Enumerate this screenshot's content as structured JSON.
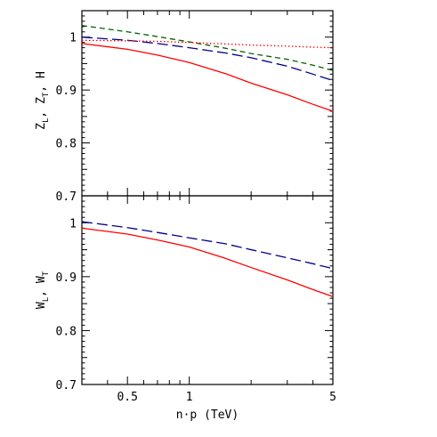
{
  "chart_data": [
    {
      "type": "line",
      "panel": "top",
      "ylabel": "Z",
      "ylabel_parts": [
        "Z",
        "L",
        ", Z",
        "T",
        ", H"
      ],
      "xscale": "log",
      "xlim": [
        0.3,
        5
      ],
      "ylim": [
        0.7,
        1.05
      ],
      "yticks": [
        0.7,
        0.8,
        0.9,
        1
      ],
      "ytick_labels": [
        "0.7",
        "0.8",
        "0.9",
        "1"
      ],
      "series": [
        {
          "color": "#ff0000",
          "style": "solid",
          "x": [
            0.3,
            0.5,
            0.7,
            1,
            1.5,
            2,
            3,
            4,
            5
          ],
          "y": [
            0.988,
            0.977,
            0.966,
            0.952,
            0.931,
            0.913,
            0.891,
            0.873,
            0.86
          ]
        },
        {
          "color": "#00008b",
          "style": "long-dash",
          "x": [
            0.3,
            0.5,
            0.7,
            1,
            1.5,
            2,
            3,
            4,
            5
          ],
          "y": [
            1.0,
            0.994,
            0.988,
            0.98,
            0.97,
            0.961,
            0.945,
            0.93,
            0.918
          ]
        },
        {
          "color": "#006400",
          "style": "short-dash",
          "x": [
            0.3,
            0.5,
            0.7,
            1,
            1.5,
            2,
            3,
            4,
            5
          ],
          "y": [
            1.022,
            1.01,
            1.001,
            0.991,
            0.979,
            0.969,
            0.958,
            0.947,
            0.937
          ]
        },
        {
          "color": "#ff0000",
          "style": "dotted",
          "x": [
            0.3,
            0.5,
            0.7,
            1,
            1.5,
            2,
            3,
            4,
            5
          ],
          "y": [
            0.994,
            0.993,
            0.992,
            0.99,
            0.987,
            0.985,
            0.983,
            0.981,
            0.98
          ]
        }
      ]
    },
    {
      "type": "line",
      "panel": "bottom",
      "ylabel_parts": [
        "W",
        "L",
        ", W",
        "T"
      ],
      "xlabel": "n·p (TeV)",
      "xscale": "log",
      "xlim": [
        0.3,
        5
      ],
      "ylim": [
        0.7,
        1.05
      ],
      "yticks": [
        0.7,
        0.8,
        0.9,
        1
      ],
      "ytick_labels": [
        "0.7",
        "0.8",
        "0.9",
        "1"
      ],
      "xticks": [
        0.5,
        1,
        5
      ],
      "xtick_labels": [
        "0.5",
        "1",
        "5"
      ],
      "series": [
        {
          "color": "#ff0000",
          "style": "solid",
          "x": [
            0.3,
            0.5,
            0.7,
            1,
            1.5,
            2,
            3,
            4,
            5
          ],
          "y": [
            0.99,
            0.979,
            0.968,
            0.955,
            0.934,
            0.917,
            0.894,
            0.876,
            0.863
          ]
        },
        {
          "color": "#00008b",
          "style": "long-dash",
          "x": [
            0.3,
            0.5,
            0.7,
            1,
            1.5,
            2,
            3,
            4,
            5
          ],
          "y": [
            1.002,
            0.991,
            0.982,
            0.972,
            0.961,
            0.95,
            0.935,
            0.924,
            0.915
          ]
        }
      ]
    }
  ]
}
